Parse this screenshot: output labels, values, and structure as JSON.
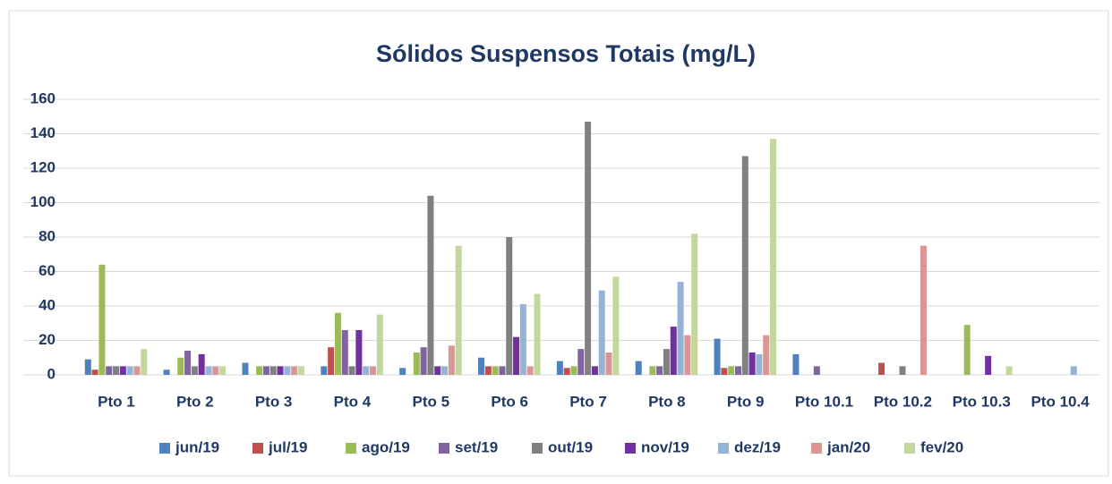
{
  "chart_data": {
    "type": "bar",
    "title": "Sólidos Suspensos Totais (mg/L)",
    "categories": [
      "Pto 1",
      "Pto 2",
      "Pto 3",
      "Pto 4",
      "Pto 5",
      "Pto 6",
      "Pto 7",
      "Pto 8",
      "Pto 9",
      "Pto 10.1",
      "Pto 10.2",
      "Pto 10.3",
      "Pto 10.4"
    ],
    "series": [
      {
        "name": "jun/19",
        "color": "#4f81bd",
        "values": [
          9,
          3,
          7,
          5,
          4,
          10,
          8,
          8,
          21,
          12,
          null,
          null,
          null
        ]
      },
      {
        "name": "jul/19",
        "color": "#c0504d",
        "values": [
          3,
          null,
          null,
          16,
          null,
          5,
          4,
          null,
          4,
          null,
          7,
          null,
          null
        ]
      },
      {
        "name": "ago/19",
        "color": "#9bbb59",
        "values": [
          64,
          10,
          5,
          36,
          13,
          5,
          5,
          5,
          5,
          null,
          null,
          29,
          null
        ]
      },
      {
        "name": "set/19",
        "color": "#8064a2",
        "values": [
          5,
          14,
          5,
          26,
          16,
          5,
          15,
          5,
          5,
          5,
          null,
          null,
          null
        ]
      },
      {
        "name": "out/19",
        "color": "#808080",
        "values": [
          5,
          5,
          5,
          5,
          104,
          80,
          147,
          15,
          127,
          null,
          5,
          null,
          null
        ]
      },
      {
        "name": "nov/19",
        "color": "#7030a0",
        "values": [
          5,
          12,
          5,
          26,
          5,
          22,
          5,
          28,
          13,
          null,
          null,
          11,
          null
        ]
      },
      {
        "name": "dez/19",
        "color": "#95b3d7",
        "values": [
          5,
          5,
          5,
          5,
          5,
          41,
          49,
          54,
          12,
          null,
          null,
          null,
          5
        ]
      },
      {
        "name": "jan/20",
        "color": "#d99694",
        "values": [
          5,
          5,
          5,
          5,
          17,
          5,
          13,
          23,
          23,
          null,
          75,
          null,
          null
        ]
      },
      {
        "name": "fev/20",
        "color": "#c3d69b",
        "values": [
          15,
          5,
          5,
          35,
          75,
          47,
          57,
          82,
          137,
          null,
          null,
          5,
          null
        ]
      }
    ],
    "ylim": [
      0,
      160
    ],
    "yticks": [
      0,
      20,
      40,
      60,
      80,
      100,
      120,
      140,
      160
    ],
    "grid": true,
    "legend": "bottom"
  }
}
